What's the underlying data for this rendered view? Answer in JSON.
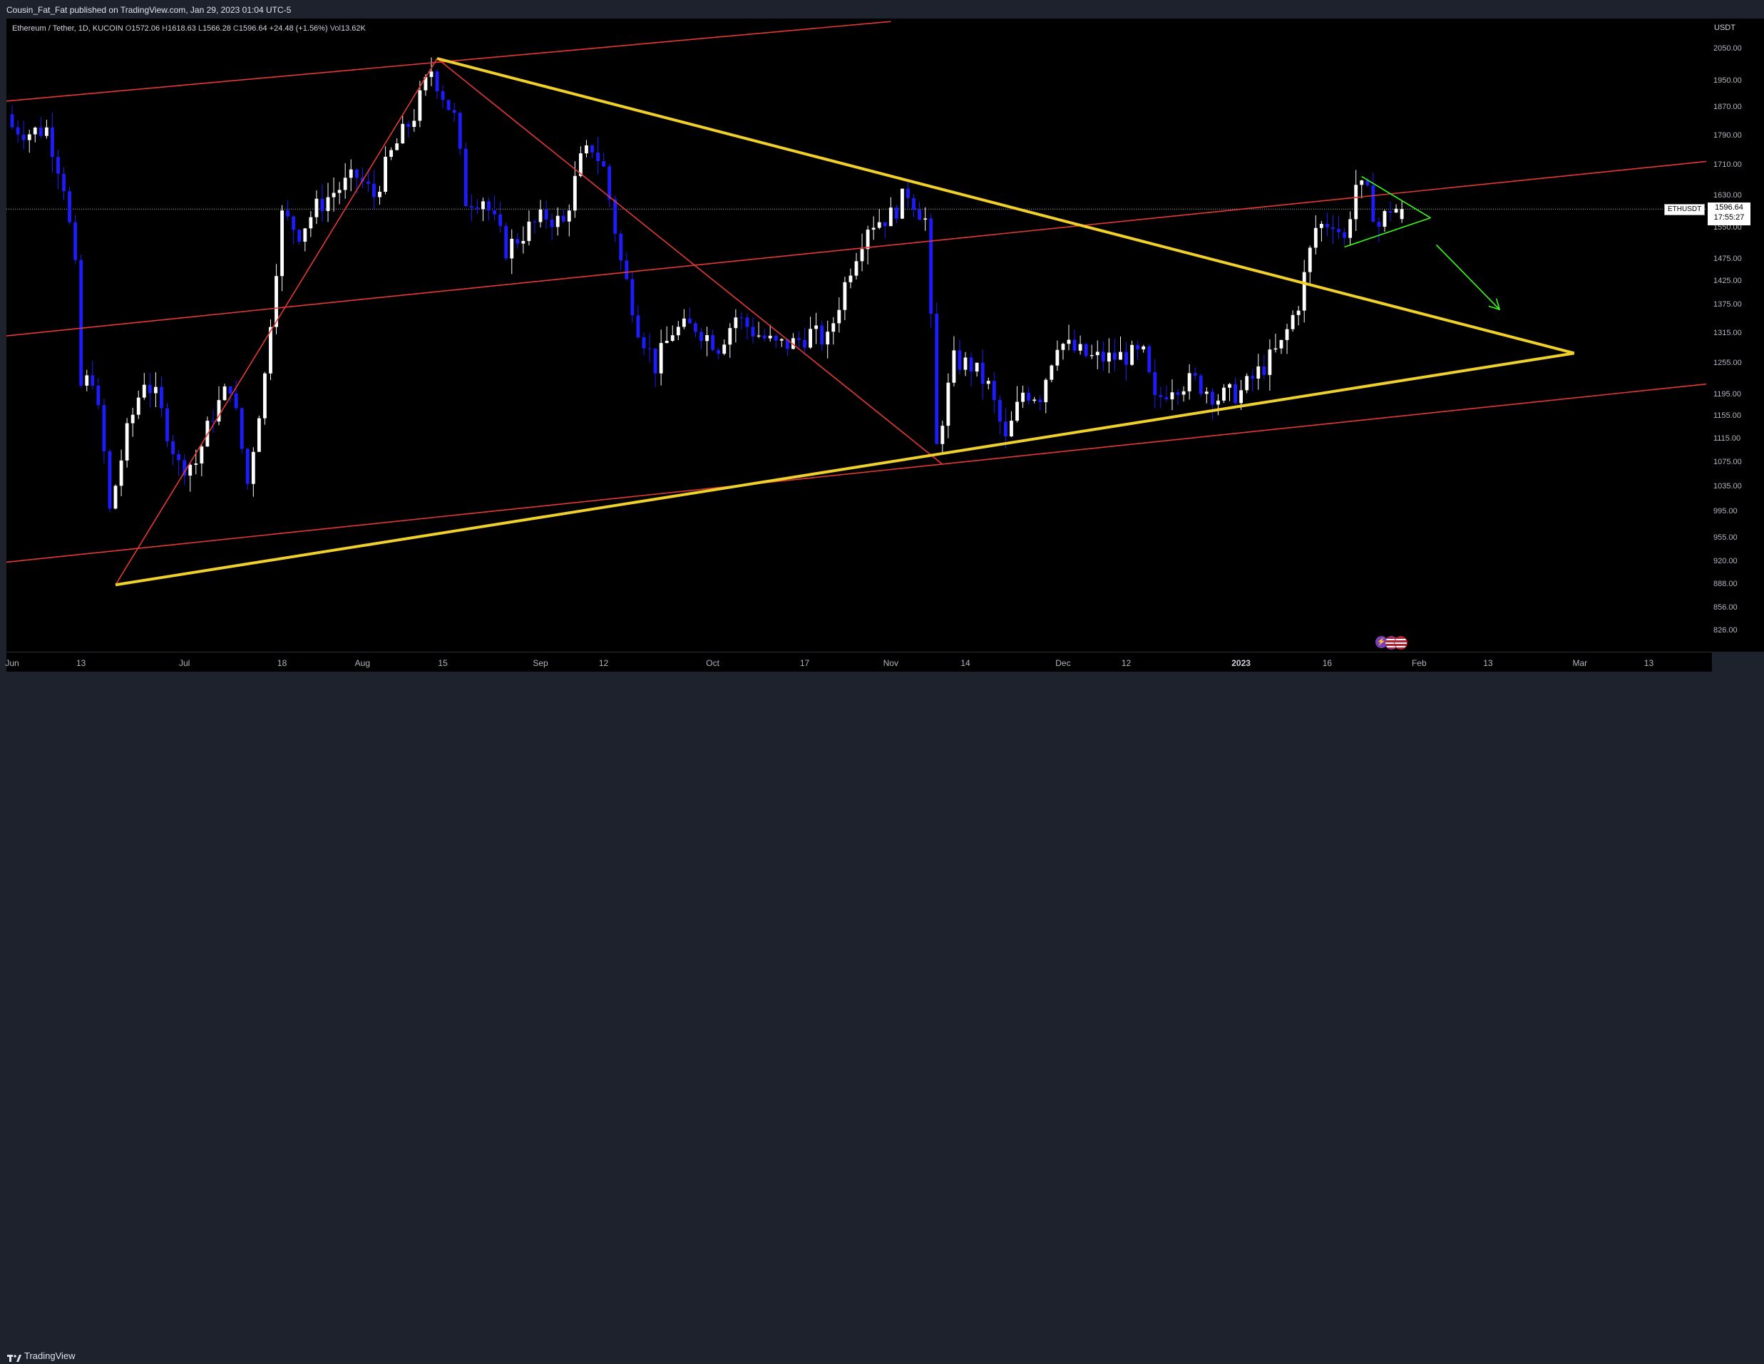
{
  "header": {
    "published_line": "Cousin_Fat_Fat published on TradingView.com, Jan 29, 2023 01:04 UTC-5"
  },
  "legend": {
    "symbol": "Ethereum / Tether, 1D, KUCOIN",
    "open_label": "O",
    "open": "1572.06",
    "high_label": "H",
    "high": "1618.63",
    "low_label": "L",
    "low": "1566.28",
    "close_label": "C",
    "close": "1596.64",
    "change": "+24.48 (+1.56%)",
    "volume_label": "Vol",
    "volume": "13.62K"
  },
  "price_axis": {
    "currency": "USDT",
    "last_price": "1596.64",
    "countdown": "17:55:27",
    "symbol_tag": "ETHUSDT"
  },
  "footer": {
    "brand": "TradingView"
  },
  "colors": {
    "up_candle": "#ffffff",
    "down_candle": "#1c1cff",
    "channel_line": "#e53935",
    "triangle_line": "#f0d02a",
    "flag_line": "#39ff14",
    "background": "#000000"
  },
  "event_icons": [
    "lightning-icon",
    "us-flag-icon",
    "us-flag-icon"
  ],
  "chart_data": {
    "type": "candlestick",
    "title": "Ethereum / Tether, 1D, KUCOIN",
    "y_scale": "log",
    "ylim": [
      800,
      2150
    ],
    "y_ticks": [
      "2050.00",
      "1950.00",
      "1870.00",
      "1790.00",
      "1710.00",
      "1630.00",
      "1550.00",
      "1475.00",
      "1425.00",
      "1375.00",
      "1315.00",
      "1255.00",
      "1195.00",
      "1155.00",
      "1115.00",
      "1075.00",
      "1035.00",
      "995.00",
      "955.00",
      "920.00",
      "888.00",
      "856.00",
      "826.00"
    ],
    "x_range": [
      "2022-05-31",
      "2023-03-23"
    ],
    "x_ticks": [
      {
        "label": "Jun",
        "date": "2022-06-01",
        "bold": false
      },
      {
        "label": "13",
        "date": "2022-06-13",
        "bold": false
      },
      {
        "label": "Jul",
        "date": "2022-07-01",
        "bold": false
      },
      {
        "label": "18",
        "date": "2022-07-18",
        "bold": false
      },
      {
        "label": "Aug",
        "date": "2022-08-01",
        "bold": false
      },
      {
        "label": "15",
        "date": "2022-08-15",
        "bold": false
      },
      {
        "label": "Sep",
        "date": "2022-09-01",
        "bold": false
      },
      {
        "label": "12",
        "date": "2022-09-12",
        "bold": false
      },
      {
        "label": "Oct",
        "date": "2022-10-01",
        "bold": false
      },
      {
        "label": "17",
        "date": "2022-10-17",
        "bold": false
      },
      {
        "label": "Nov",
        "date": "2022-11-01",
        "bold": false
      },
      {
        "label": "14",
        "date": "2022-11-14",
        "bold": false
      },
      {
        "label": "Dec",
        "date": "2022-12-01",
        "bold": false
      },
      {
        "label": "12",
        "date": "2022-12-12",
        "bold": false
      },
      {
        "label": "2023",
        "date": "2023-01-01",
        "bold": true
      },
      {
        "label": "16",
        "date": "2023-01-16",
        "bold": false
      },
      {
        "label": "Feb",
        "date": "2023-02-01",
        "bold": false
      },
      {
        "label": "13",
        "date": "2023-02-13",
        "bold": false
      },
      {
        "label": "Mar",
        "date": "2023-03-01",
        "bold": false
      },
      {
        "label": "13",
        "date": "2023-03-13",
        "bold": false
      }
    ],
    "close_path": [
      [
        "2022-06-01",
        1815
      ],
      [
        "2022-06-04",
        1800
      ],
      [
        "2022-06-07",
        1810
      ],
      [
        "2022-06-10",
        1660
      ],
      [
        "2022-06-12",
        1450
      ],
      [
        "2022-06-13",
        1210
      ],
      [
        "2022-06-15",
        1230
      ],
      [
        "2022-06-17",
        1090
      ],
      [
        "2022-06-18",
        995
      ],
      [
        "2022-06-21",
        1125
      ],
      [
        "2022-06-24",
        1225
      ],
      [
        "2022-06-26",
        1190
      ],
      [
        "2022-06-30",
        1070
      ],
      [
        "2022-07-03",
        1075
      ],
      [
        "2022-07-06",
        1160
      ],
      [
        "2022-07-09",
        1215
      ],
      [
        "2022-07-12",
        1040
      ],
      [
        "2022-07-15",
        1230
      ],
      [
        "2022-07-18",
        1580
      ],
      [
        "2022-07-21",
        1540
      ],
      [
        "2022-07-24",
        1600
      ],
      [
        "2022-07-27",
        1640
      ],
      [
        "2022-07-31",
        1680
      ],
      [
        "2022-08-03",
        1630
      ],
      [
        "2022-08-06",
        1740
      ],
      [
        "2022-08-10",
        1850
      ],
      [
        "2022-08-13",
        1985
      ],
      [
        "2022-08-15",
        1910
      ],
      [
        "2022-08-17",
        1840
      ],
      [
        "2022-08-19",
        1620
      ],
      [
        "2022-08-22",
        1625
      ],
      [
        "2022-08-26",
        1500
      ],
      [
        "2022-08-30",
        1550
      ],
      [
        "2022-09-02",
        1580
      ],
      [
        "2022-09-05",
        1560
      ],
      [
        "2022-09-08",
        1720
      ],
      [
        "2022-09-10",
        1760
      ],
      [
        "2022-09-12",
        1700
      ],
      [
        "2022-09-15",
        1470
      ],
      [
        "2022-09-18",
        1330
      ],
      [
        "2022-09-21",
        1250
      ],
      [
        "2022-09-24",
        1320
      ],
      [
        "2022-09-28",
        1330
      ],
      [
        "2022-10-02",
        1290
      ],
      [
        "2022-10-05",
        1350
      ],
      [
        "2022-10-08",
        1320
      ],
      [
        "2022-10-12",
        1290
      ],
      [
        "2022-10-15",
        1295
      ],
      [
        "2022-10-18",
        1315
      ],
      [
        "2022-10-21",
        1300
      ],
      [
        "2022-10-25",
        1460
      ],
      [
        "2022-10-28",
        1560
      ],
      [
        "2022-11-01",
        1580
      ],
      [
        "2022-11-04",
        1640
      ],
      [
        "2022-11-07",
        1570
      ],
      [
        "2022-11-09",
        1100
      ],
      [
        "2022-11-12",
        1260
      ],
      [
        "2022-11-15",
        1250
      ],
      [
        "2022-11-18",
        1210
      ],
      [
        "2022-11-21",
        1110
      ],
      [
        "2022-11-24",
        1200
      ],
      [
        "2022-11-27",
        1195
      ],
      [
        "2022-11-30",
        1300
      ],
      [
        "2022-12-03",
        1280
      ],
      [
        "2022-12-06",
        1265
      ],
      [
        "2022-12-09",
        1265
      ],
      [
        "2022-12-12",
        1270
      ],
      [
        "2022-12-15",
        1270
      ],
      [
        "2022-12-17",
        1180
      ],
      [
        "2022-12-20",
        1215
      ],
      [
        "2022-12-24",
        1220
      ],
      [
        "2022-12-28",
        1190
      ],
      [
        "2023-01-01",
        1200
      ],
      [
        "2023-01-05",
        1250
      ],
      [
        "2023-01-08",
        1290
      ],
      [
        "2023-01-11",
        1380
      ],
      [
        "2023-01-14",
        1550
      ],
      [
        "2023-01-17",
        1570
      ],
      [
        "2023-01-19",
        1520
      ],
      [
        "2023-01-21",
        1660
      ],
      [
        "2023-01-23",
        1630
      ],
      [
        "2023-01-25",
        1555
      ],
      [
        "2023-01-27",
        1600
      ],
      [
        "2023-01-29",
        1596.64
      ]
    ],
    "last": {
      "open": 1572.06,
      "high": 1618.63,
      "low": 1566.28,
      "close": 1596.64,
      "volume": "13.62K"
    },
    "drawings": [
      {
        "name": "channel-upper-line",
        "color": "red",
        "points": [
          [
            "2022-05-31",
            1890
          ],
          [
            "2022-11-01",
            2140
          ]
        ]
      },
      {
        "name": "channel-middle-line",
        "color": "red",
        "points": [
          [
            "2022-05-31",
            1310
          ],
          [
            "2023-03-23",
            1720
          ]
        ]
      },
      {
        "name": "channel-lower-line",
        "color": "red",
        "points": [
          [
            "2022-05-31",
            920
          ],
          [
            "2023-03-23",
            1215
          ]
        ]
      },
      {
        "name": "rise-line",
        "color": "red",
        "points": [
          [
            "2022-06-19",
            888
          ],
          [
            "2022-08-14",
            2020
          ]
        ]
      },
      {
        "name": "decline-line",
        "color": "red",
        "points": [
          [
            "2022-08-14",
            2020
          ],
          [
            "2022-11-10",
            1072
          ]
        ]
      },
      {
        "name": "triangle-upper-line",
        "color": "yellow",
        "points": [
          [
            "2022-08-14",
            2020
          ],
          [
            "2023-02-28",
            1275
          ]
        ]
      },
      {
        "name": "triangle-lower-line",
        "color": "yellow",
        "points": [
          [
            "2022-06-19",
            888
          ],
          [
            "2023-02-28",
            1275
          ]
        ]
      },
      {
        "name": "flag-upper-line",
        "color": "green",
        "points": [
          [
            "2023-01-22",
            1680
          ],
          [
            "2023-02-03",
            1575
          ]
        ]
      },
      {
        "name": "flag-lower-line",
        "color": "green",
        "points": [
          [
            "2023-01-19",
            1505
          ],
          [
            "2023-02-03",
            1575
          ]
        ]
      },
      {
        "name": "projection-arrow",
        "color": "green",
        "points": [
          [
            "2023-02-04",
            1510
          ],
          [
            "2023-02-15",
            1365
          ]
        ]
      }
    ]
  }
}
